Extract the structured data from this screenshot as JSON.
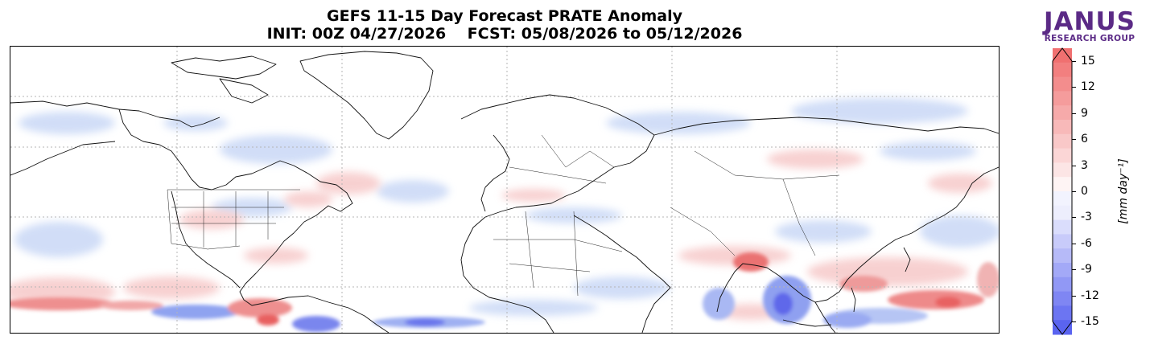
{
  "title": {
    "line1": "GEFS 11-15 Day Forecast PRATE Anomaly",
    "line2": "INIT: 00Z 04/27/2026    FCST: 05/08/2026 to 05/12/2026"
  },
  "logo": {
    "name": "JANUS",
    "subtitle": "RESEARCH GROUP",
    "color": "#5b2a86"
  },
  "colorbar": {
    "label": "[mm day⁻¹]",
    "ticks": [
      "15",
      "12",
      "9",
      "6",
      "3",
      "0",
      "-3",
      "-6",
      "-9",
      "-12",
      "-15"
    ],
    "min": -15,
    "max": 15,
    "colors": {
      "high": "#f07070",
      "low": "#5a64f0",
      "neutral": "#ffffff"
    }
  },
  "map": {
    "projection": "equirectangular",
    "field": "precipitation rate anomaly",
    "gridlines": true
  }
}
